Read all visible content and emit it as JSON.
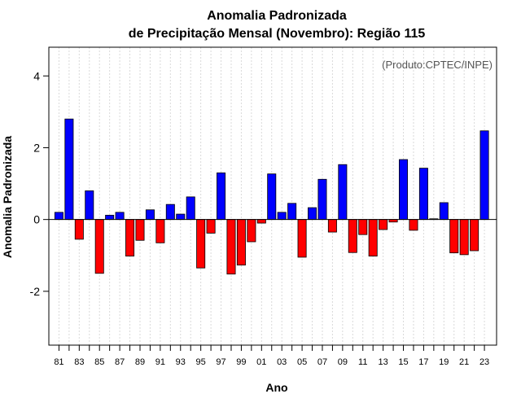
{
  "chart_data": {
    "type": "bar",
    "title_line1": "Anomalia Padronizada",
    "title_line2": "de Precipitação Mensal (Novembro): Região 115",
    "xlabel": "Ano",
    "ylabel": "Anomalia Padronizada",
    "annotation": "(Produto:CPTEC/INPE)",
    "ylim": [
      -3.5,
      4.8
    ],
    "yticks": [
      -2,
      0,
      2,
      4
    ],
    "ytick_labels": [
      "-2",
      "0",
      "2",
      "4"
    ],
    "xtick_labels": [
      "81",
      "83",
      "85",
      "87",
      "89",
      "91",
      "93",
      "95",
      "97",
      "99",
      "01",
      "03",
      "05",
      "07",
      "09",
      "11",
      "13",
      "15",
      "17",
      "19",
      "21",
      "23"
    ],
    "categories": [
      "1981",
      "1982",
      "1983",
      "1984",
      "1985",
      "1986",
      "1987",
      "1988",
      "1989",
      "1990",
      "1991",
      "1992",
      "1993",
      "1994",
      "1995",
      "1996",
      "1997",
      "1998",
      "1999",
      "2000",
      "2001",
      "2002",
      "2003",
      "2004",
      "2005",
      "2006",
      "2007",
      "2008",
      "2009",
      "2010",
      "2011",
      "2012",
      "2013",
      "2014",
      "2015",
      "2016",
      "2017",
      "2018",
      "2019",
      "2020",
      "2021",
      "2022",
      "2023"
    ],
    "values": [
      0.2,
      2.8,
      -0.55,
      0.8,
      -1.5,
      0.12,
      0.2,
      -1.02,
      -0.58,
      0.27,
      -0.65,
      0.42,
      0.15,
      0.63,
      -1.35,
      -0.38,
      1.3,
      -1.52,
      -1.27,
      -0.62,
      -0.1,
      1.27,
      0.2,
      0.45,
      -1.05,
      0.33,
      1.12,
      -0.35,
      1.53,
      -0.92,
      -0.42,
      -1.02,
      -0.28,
      -0.07,
      1.67,
      -0.3,
      1.43,
      0.02,
      0.47,
      -0.93,
      -0.98,
      -0.87,
      2.47
    ],
    "colors": {
      "positive": "#0000ff",
      "negative": "#ff0000",
      "grid": "#d9d9d9",
      "axis": "#000000"
    },
    "grid": true
  }
}
